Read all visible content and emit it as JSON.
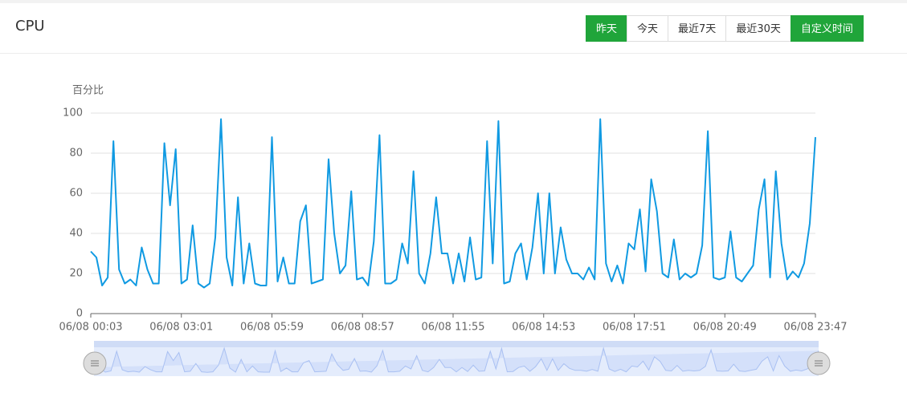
{
  "header": {
    "title": "CPU",
    "buttons": [
      "昨天",
      "今天",
      "最近7天",
      "最近30天",
      "自定义时间"
    ]
  },
  "chart_data": {
    "type": "line",
    "y_label": "百分比",
    "categories": [
      "06/08 00:03",
      null,
      null,
      null,
      null,
      null,
      null,
      null,
      null,
      null,
      null,
      null,
      null,
      null,
      null,
      null,
      "06/08 03:01",
      null,
      null,
      null,
      null,
      null,
      null,
      null,
      null,
      null,
      null,
      null,
      null,
      null,
      null,
      null,
      "06/08 05:59",
      null,
      null,
      null,
      null,
      null,
      null,
      null,
      null,
      null,
      null,
      null,
      null,
      null,
      null,
      null,
      "06/08 08:57",
      null,
      null,
      null,
      null,
      null,
      null,
      null,
      null,
      null,
      null,
      null,
      null,
      null,
      null,
      null,
      "06/08 11:55",
      null,
      null,
      null,
      null,
      null,
      null,
      null,
      null,
      null,
      null,
      null,
      null,
      null,
      null,
      null,
      "06/08 14:53",
      null,
      null,
      null,
      null,
      null,
      null,
      null,
      null,
      null,
      null,
      null,
      null,
      null,
      null,
      null,
      "06/08 17:51",
      null,
      null,
      null,
      null,
      null,
      null,
      null,
      null,
      null,
      null,
      null,
      null,
      null,
      null,
      null,
      "06/08 20:49",
      null,
      null,
      null,
      null,
      null,
      null,
      null,
      null,
      null,
      null,
      null,
      null,
      null,
      null,
      null,
      "06/08 23:47"
    ],
    "series": [
      {
        "name": "CPU",
        "color": "#109ae2",
        "values": [
          31,
          28,
          14,
          18,
          86,
          22,
          15,
          17,
          14,
          33,
          22,
          15,
          15,
          85,
          54,
          82,
          15,
          17,
          44,
          15,
          13,
          15,
          38,
          97,
          28,
          14,
          58,
          15,
          35,
          15,
          14,
          14,
          88,
          16,
          28,
          15,
          15,
          46,
          54,
          15,
          16,
          17,
          77,
          40,
          20,
          24,
          61,
          17,
          18,
          14,
          36,
          89,
          15,
          15,
          17,
          35,
          25,
          71,
          20,
          15,
          30,
          58,
          30,
          30,
          15,
          30,
          16,
          38,
          17,
          18,
          86,
          25,
          96,
          15,
          16,
          30,
          35,
          17,
          33,
          60,
          20,
          60,
          20,
          43,
          27,
          20,
          20,
          17,
          23,
          17,
          97,
          25,
          16,
          24,
          15,
          35,
          32,
          52,
          21,
          67,
          51,
          20,
          18,
          37,
          17,
          20,
          18,
          20,
          34,
          91,
          18,
          17,
          18,
          41,
          18,
          16,
          20,
          24,
          52,
          67,
          18,
          71,
          35,
          17,
          21,
          18,
          25,
          45,
          88
        ]
      }
    ],
    "ylim": [
      0,
      100
    ],
    "yticks": [
      0,
      20,
      40,
      60,
      80,
      100
    ],
    "grid": true
  }
}
